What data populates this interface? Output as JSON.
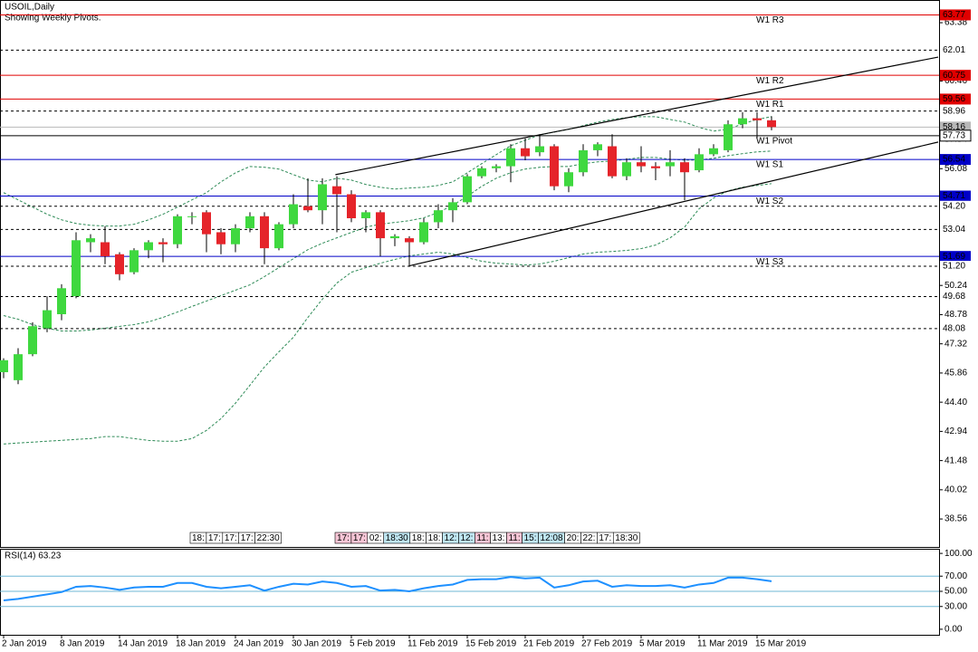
{
  "chart_data": [
    {
      "type": "candlestick",
      "title": "USOIL,Daily",
      "subtitle": "Showing Weekly Pivots.",
      "categories": [
        "2 Jan 2019",
        null,
        null,
        null,
        "8 Jan 2019",
        null,
        null,
        null,
        "14 Jan 2019",
        null,
        null,
        null,
        "18 Jan 2019",
        null,
        null,
        null,
        "24 Jan 2019",
        null,
        null,
        null,
        "30 Jan 2019",
        null,
        null,
        null,
        "5 Feb 2019",
        null,
        null,
        null,
        "11 Feb 2019",
        null,
        null,
        null,
        "15 Feb 2019",
        null,
        null,
        null,
        "21 Feb 2019",
        null,
        null,
        null,
        "27 Feb 2019",
        null,
        null,
        null,
        "5 Mar 2019",
        null,
        null,
        null,
        "11 Mar 2019",
        null,
        null,
        null,
        "15 Mar 2019",
        null
      ],
      "open": [
        45.9,
        45.5,
        46.8,
        48.1,
        48.8,
        49.7,
        52.4,
        52.4,
        51.8,
        50.9,
        52.0,
        52.4,
        52.3,
        53.7,
        53.9,
        52.9,
        52.3,
        53.1,
        53.7,
        52.1,
        53.3,
        54.2,
        54.0,
        55.2,
        54.8,
        53.6,
        53.9,
        52.6,
        52.6,
        52.4,
        53.4,
        54.0,
        54.4,
        55.7,
        56.1,
        56.2,
        57.1,
        56.9,
        57.2,
        55.2,
        55.9,
        57.0,
        57.2,
        55.7,
        56.4,
        56.2,
        56.2,
        56.4,
        56.0,
        56.8,
        57.0,
        58.3,
        58.6,
        58.5
      ],
      "high": [
        46.6,
        47.1,
        48.4,
        49.7,
        50.3,
        52.9,
        52.8,
        53.2,
        51.9,
        52.1,
        52.5,
        52.6,
        53.8,
        53.9,
        54.0,
        53.1,
        53.3,
        53.9,
        53.9,
        53.4,
        54.8,
        55.6,
        55.6,
        55.7,
        55.0,
        54.0,
        54.0,
        52.8,
        52.7,
        53.6,
        54.3,
        54.6,
        55.8,
        56.2,
        56.3,
        57.3,
        57.6,
        57.8,
        57.3,
        56.1,
        57.3,
        57.4,
        57.8,
        56.6,
        57.2,
        56.4,
        57.0,
        56.6,
        57.1,
        57.3,
        58.5,
        58.9,
        58.9,
        58.7
      ],
      "low": [
        45.6,
        45.3,
        46.7,
        47.9,
        48.5,
        49.6,
        51.9,
        51.3,
        50.5,
        50.8,
        51.6,
        51.4,
        52.1,
        53.3,
        51.9,
        51.8,
        51.9,
        52.9,
        51.3,
        52.0,
        53.1,
        53.9,
        53.3,
        52.9,
        53.4,
        52.9,
        51.7,
        52.2,
        51.2,
        52.3,
        53.1,
        53.4,
        54.3,
        55.6,
        55.9,
        55.4,
        56.5,
        56.7,
        55.0,
        54.9,
        55.7,
        56.7,
        55.6,
        55.5,
        55.9,
        55.5,
        55.7,
        54.5,
        55.9,
        56.7,
        56.9,
        58.1,
        57.6,
        58.0
      ],
      "close": [
        46.5,
        46.8,
        48.2,
        49.0,
        50.1,
        52.5,
        52.6,
        51.7,
        50.8,
        52.0,
        52.4,
        52.3,
        53.7,
        53.7,
        52.8,
        52.3,
        53.1,
        53.7,
        52.1,
        53.3,
        54.3,
        54.0,
        55.3,
        54.8,
        53.6,
        53.9,
        52.6,
        52.7,
        52.4,
        53.4,
        54.0,
        54.4,
        55.7,
        56.1,
        56.2,
        57.1,
        56.7,
        57.2,
        55.2,
        55.9,
        57.0,
        57.3,
        55.7,
        56.4,
        56.2,
        56.1,
        56.4,
        55.9,
        56.8,
        57.1,
        58.3,
        58.6,
        58.5,
        58.16
      ],
      "up_color": "#3fd83f",
      "down_color": "#e5242a",
      "wick_color": "#000000",
      "bands": {
        "color": "#2e8b57",
        "upper": [
          54.88,
          54.52,
          54.16,
          53.8,
          53.52,
          53.34,
          53.25,
          53.21,
          53.21,
          53.3,
          53.52,
          53.8,
          54.16,
          54.52,
          54.88,
          55.42,
          55.87,
          56.19,
          56.15,
          56.06,
          55.78,
          55.51,
          55.42,
          55.6,
          55.51,
          55.29,
          55.15,
          55.06,
          55.11,
          55.15,
          55.24,
          55.42,
          55.87,
          56.33,
          56.78,
          57.23,
          57.5,
          57.77,
          57.91,
          58.05,
          58.23,
          58.41,
          58.54,
          58.63,
          58.68,
          58.68,
          58.54,
          58.41,
          58.14,
          57.96,
          58.05,
          58.32,
          58.54,
          58.68
        ],
        "middle": [
          48.73,
          48.55,
          48.28,
          48.1,
          47.96,
          47.96,
          48.01,
          48.1,
          48.19,
          48.28,
          48.42,
          48.64,
          48.91,
          49.19,
          49.46,
          49.73,
          50.0,
          50.27,
          50.68,
          51.13,
          51.58,
          52.03,
          52.35,
          52.62,
          52.89,
          53.16,
          53.3,
          53.39,
          53.48,
          53.62,
          53.89,
          54.25,
          54.7,
          55.2,
          55.6,
          55.88,
          56.06,
          56.15,
          56.19,
          56.19,
          56.33,
          56.42,
          56.46,
          56.55,
          56.64,
          56.64,
          56.55,
          56.51,
          56.51,
          56.6,
          56.73,
          56.83,
          56.92,
          56.96
        ],
        "lower": [
          42.31,
          42.36,
          42.4,
          42.45,
          42.49,
          42.54,
          42.58,
          42.68,
          42.68,
          42.58,
          42.49,
          42.45,
          42.45,
          42.58,
          42.99,
          43.58,
          44.35,
          45.25,
          46.16,
          46.92,
          47.65,
          48.64,
          49.55,
          50.36,
          50.9,
          51.13,
          51.35,
          51.54,
          51.72,
          51.81,
          51.9,
          51.81,
          51.63,
          51.45,
          51.35,
          51.31,
          51.26,
          51.31,
          51.45,
          51.63,
          51.81,
          51.9,
          51.94,
          51.99,
          52.08,
          52.26,
          52.62,
          53.16,
          54.07,
          54.61,
          54.97,
          55.15,
          55.24,
          55.33
        ]
      },
      "trendlines": [
        {
          "x": [
            22.9,
            64.5
          ],
          "y": [
            55.78,
            61.66
          ]
        },
        {
          "x": [
            28,
            64.5
          ],
          "y": [
            51.22,
            57.41
          ]
        }
      ],
      "levels": [
        {
          "value": 63.77,
          "name": "W1 R3",
          "color": "#e00000",
          "style": "solid"
        },
        {
          "value": 62.01,
          "color": "#000000",
          "style": "dashed"
        },
        {
          "value": 60.75,
          "name": "W1 R2",
          "color": "#e00000",
          "style": "solid"
        },
        {
          "value": 59.56,
          "name": "W1 R1",
          "color": "#e00000",
          "style": "solid"
        },
        {
          "value": 58.96,
          "color": "#000000",
          "style": "dashed"
        },
        {
          "value": 58.16,
          "color": "#b8b8b8",
          "style": "bid"
        },
        {
          "value": 57.73,
          "name": "W1 Pivot",
          "color": "#000000",
          "style": "solid"
        },
        {
          "value": 56.54,
          "name": "W1 S1",
          "color": "#0000c8",
          "style": "solid"
        },
        {
          "value": 54.71,
          "name": "W1 S2",
          "color": "#0000c8",
          "style": "solid"
        },
        {
          "value": 54.2,
          "value_label": "54.20",
          "color": "#000000",
          "style": "dashed"
        },
        {
          "value": 53.04,
          "color": "#000000",
          "style": "dashed"
        },
        {
          "value": 51.69,
          "name": "W1 S3",
          "color": "#0000c8",
          "style": "solid"
        },
        {
          "value": 51.2,
          "value_label": "51.20",
          "color": "#000000",
          "style": "dashed"
        },
        {
          "value": 49.68,
          "color": "#000000",
          "style": "dashed"
        },
        {
          "value": 48.08,
          "color": "#000000",
          "style": "dashed"
        }
      ],
      "markers": [
        [
          {
            "label": "18:",
            "color": "#ffffff"
          },
          {
            "label": "17:",
            "color": "#ffffff"
          },
          {
            "label": "17:",
            "color": "#ffffff"
          },
          {
            "label": "17:",
            "color": "#ffffff"
          },
          {
            "label": "22:30",
            "color": "#ffffff"
          }
        ],
        [
          {
            "label": "17:",
            "color": "#f7c6d6"
          },
          {
            "label": "17:",
            "color": "#f7c6d6"
          },
          {
            "label": "02:",
            "color": "#ffffff"
          },
          {
            "label": "18:30",
            "color": "#bfe6f2"
          },
          {
            "label": "18:",
            "color": "#ffffff"
          },
          {
            "label": "18:",
            "color": "#ffffff"
          },
          {
            "label": "12:",
            "color": "#bfe6f2"
          },
          {
            "label": "12:",
            "color": "#bfe6f2"
          },
          {
            "label": "11:",
            "color": "#f7c6d6"
          },
          {
            "label": "13:",
            "color": "#ffffff"
          },
          {
            "label": "11:",
            "color": "#f7c6d6"
          },
          {
            "label": "15:",
            "color": "#bfe6f2"
          },
          {
            "label": "12:08",
            "color": "#bfe6f2"
          },
          {
            "label": "20:",
            "color": "#ffffff"
          },
          {
            "label": "22:",
            "color": "#ffffff"
          },
          {
            "label": "17:",
            "color": "#ffffff"
          },
          {
            "label": "18:30",
            "color": "#ffffff"
          }
        ]
      ],
      "ylim": [
        37.16,
        64.47
      ],
      "yticks": [
        63.38,
        60.46,
        57.54,
        56.08,
        50.24,
        48.78,
        47.32,
        45.86,
        {
          "value": 44.4,
          "label": "44.40"
        },
        42.94,
        41.48,
        {
          "value": 40.02,
          "label": "40.02"
        },
        38.56
      ]
    },
    {
      "type": "line",
      "title": "RSI(14) 63.23",
      "color": "#1e90ff",
      "values": [
        38,
        40,
        43,
        46,
        49,
        56,
        57,
        55,
        52,
        55,
        56,
        56,
        61,
        61,
        56,
        54,
        56,
        58,
        51,
        56,
        60,
        59,
        63,
        61,
        56,
        57,
        51,
        52,
        50,
        54,
        57,
        59,
        65,
        66,
        66,
        69,
        67,
        68,
        55,
        58,
        63,
        64,
        56,
        58,
        57,
        57,
        58,
        55,
        59,
        61,
        68,
        68,
        66,
        63.23
      ],
      "levels": [
        70,
        50,
        30
      ],
      "level_color": "#6fb7d6",
      "ylim": [
        -8.5,
        106.1
      ],
      "yticks": [
        {
          "value": 100,
          "label": "100.00"
        },
        {
          "value": 70,
          "label": "70.00"
        },
        {
          "value": 50,
          "label": "50.00"
        },
        {
          "value": 30,
          "label": "30.00"
        },
        {
          "value": 0,
          "label": "0.00"
        }
      ]
    }
  ]
}
